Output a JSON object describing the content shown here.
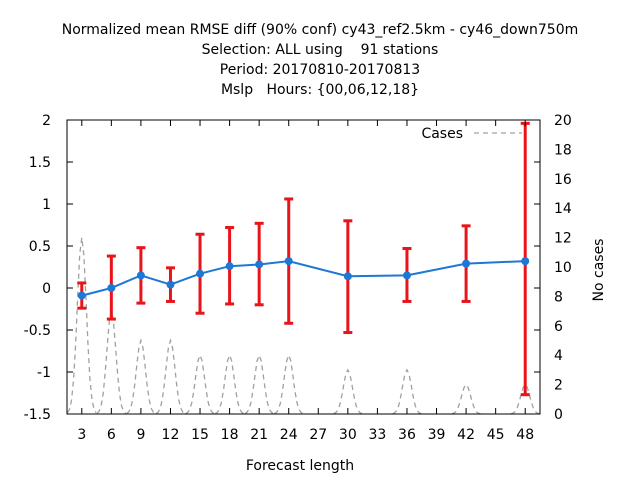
{
  "header": {
    "title_lines": [
      "Normalized mean RMSE diff (90% conf) cy43_ref2.5km - cy46_down750m",
      "Selection: ALL using    91 stations",
      "Period: 20170810-20170813",
      "Mslp   Hours: {00,06,12,18}"
    ]
  },
  "chart_data": {
    "type": "line",
    "xlabel": "Forecast length",
    "ylabel": "",
    "y2label": "No cases",
    "x_ticks": [
      3,
      6,
      9,
      12,
      15,
      18,
      21,
      24,
      27,
      30,
      33,
      36,
      39,
      42,
      45,
      48
    ],
    "xlim": [
      1.5,
      49.5
    ],
    "ylim": [
      -1.5,
      2
    ],
    "y_ticks": [
      "2",
      "1.5",
      "1",
      "0.5",
      "0",
      "-0.5",
      "-1",
      "-1.5"
    ],
    "y2lim": [
      0,
      20
    ],
    "y2_ticks": [
      "20",
      "18",
      "16",
      "14",
      "12",
      "10",
      "8",
      "6",
      "4",
      "2",
      "0"
    ],
    "series": [
      {
        "name": "",
        "color": "#1f77d4",
        "points": [
          {
            "x": 3,
            "y": -0.09,
            "lo": -0.24,
            "hi": 0.06
          },
          {
            "x": 6,
            "y": 0.0,
            "lo": -0.37,
            "hi": 0.38
          },
          {
            "x": 9,
            "y": 0.15,
            "lo": -0.18,
            "hi": 0.48
          },
          {
            "x": 12,
            "y": 0.04,
            "lo": -0.16,
            "hi": 0.24
          },
          {
            "x": 15,
            "y": 0.17,
            "lo": -0.3,
            "hi": 0.64
          },
          {
            "x": 18,
            "y": 0.26,
            "lo": -0.19,
            "hi": 0.72
          },
          {
            "x": 21,
            "y": 0.28,
            "lo": -0.2,
            "hi": 0.77
          },
          {
            "x": 24,
            "y": 0.32,
            "lo": -0.42,
            "hi": 1.06
          },
          {
            "x": 30,
            "y": 0.14,
            "lo": -0.53,
            "hi": 0.8
          },
          {
            "x": 36,
            "y": 0.15,
            "lo": -0.16,
            "hi": 0.47
          },
          {
            "x": 42,
            "y": 0.29,
            "lo": -0.16,
            "hi": 0.74
          },
          {
            "x": 48,
            "y": 0.32,
            "lo": -1.27,
            "hi": 1.96
          }
        ],
        "error_color": "#e8141a"
      },
      {
        "name": "Cases",
        "axis": "y2",
        "style": "dashed",
        "color": "#a0a0a0",
        "peaks": [
          {
            "x": 3,
            "value": 12
          },
          {
            "x": 6,
            "value": 7
          },
          {
            "x": 9,
            "value": 5
          },
          {
            "x": 12,
            "value": 5
          },
          {
            "x": 15,
            "value": 4
          },
          {
            "x": 18,
            "value": 4
          },
          {
            "x": 21,
            "value": 4
          },
          {
            "x": 24,
            "value": 4
          },
          {
            "x": 30,
            "value": 3
          },
          {
            "x": 36,
            "value": 3
          },
          {
            "x": 42,
            "value": 2
          },
          {
            "x": 48,
            "value": 2
          }
        ]
      }
    ],
    "legend": {
      "position": "top-right",
      "label": "Cases"
    }
  }
}
